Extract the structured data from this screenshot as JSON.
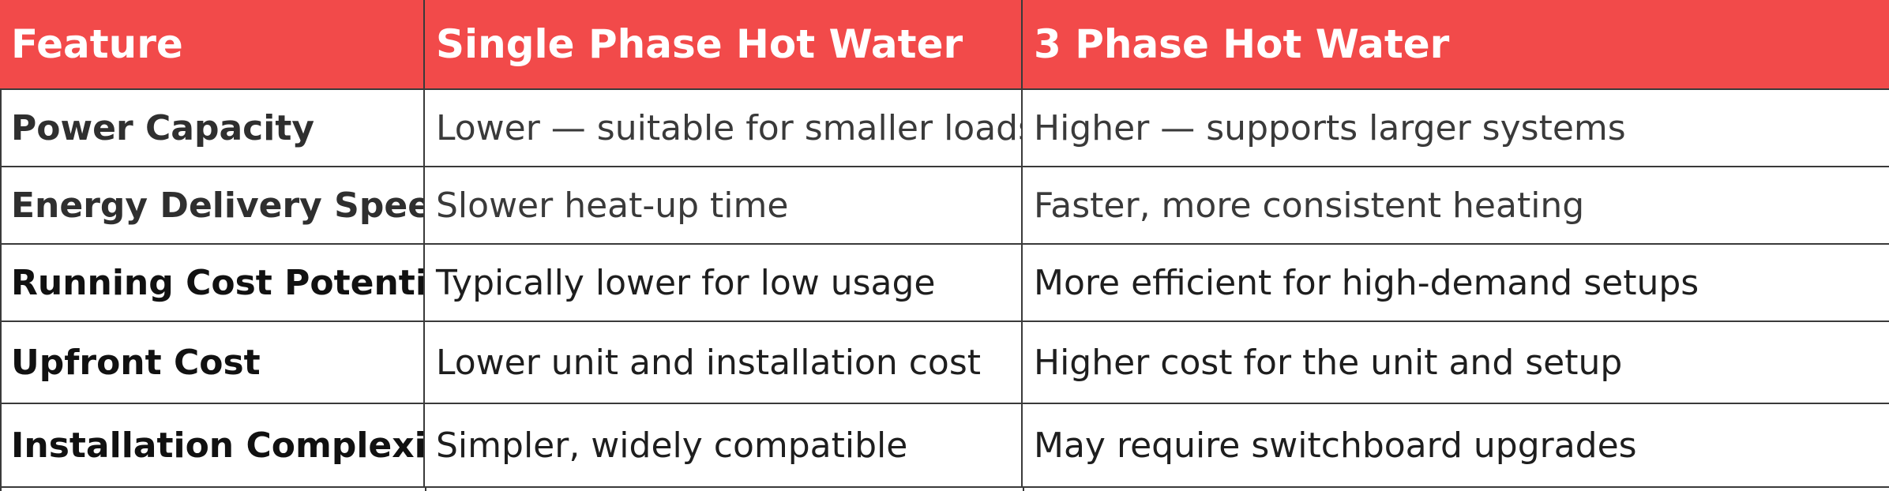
{
  "table": {
    "headers": [
      "Feature",
      "Single Phase Hot Water",
      "3 Phase Hot Water"
    ],
    "rows": [
      {
        "feature": "Power Capacity",
        "single_phase": "Lower — suitable for smaller loads",
        "three_phase": "Higher — supports larger systems"
      },
      {
        "feature": "Energy Delivery Speed",
        "single_phase": "Slower heat-up time",
        "three_phase": "Faster, more consistent heating"
      },
      {
        "feature": "Running Cost Potential",
        "single_phase": "Typically lower for low usage",
        "three_phase": "More efficient for high-demand setups"
      },
      {
        "feature": "Upfront Cost",
        "single_phase": "Lower unit and installation cost",
        "three_phase": "Higher cost for the unit and setup"
      },
      {
        "feature": "Installation Complexity",
        "single_phase": "Simpler, widely compatible",
        "three_phase": "May require switchboard upgrades"
      }
    ]
  },
  "colors": {
    "header_background": "#f24a4a",
    "header_text": "#ffffff",
    "border": "#3a3a3a"
  }
}
